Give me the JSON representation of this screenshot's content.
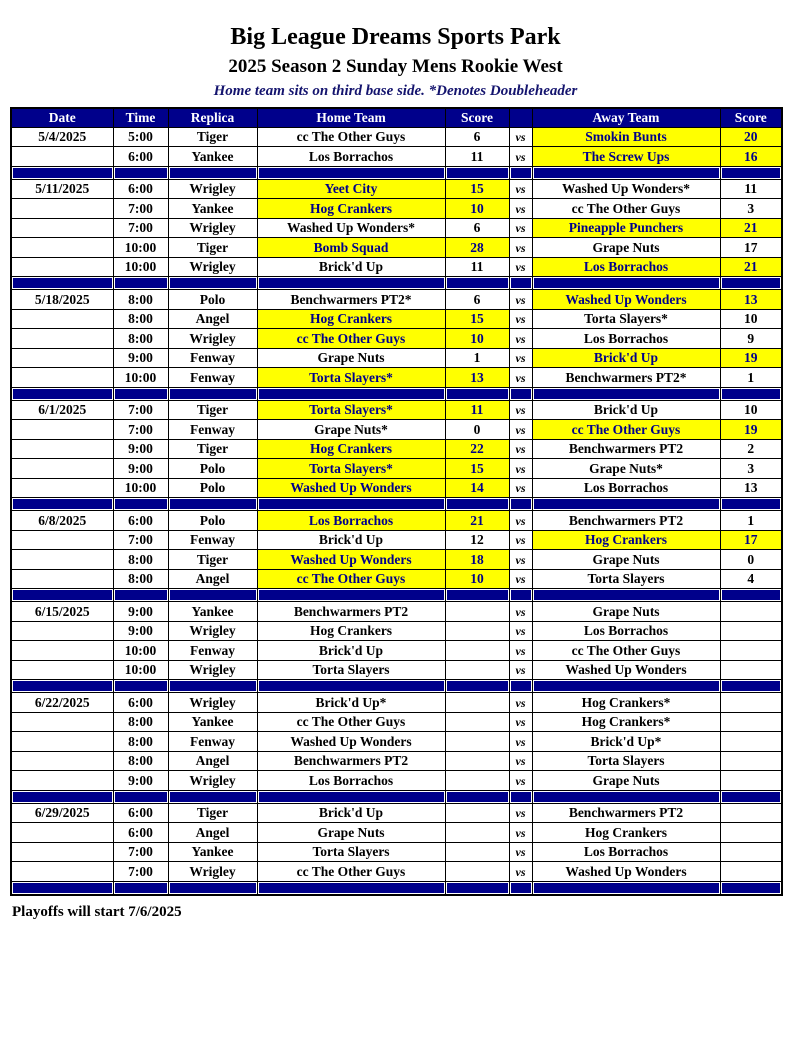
{
  "page": {
    "title": "Big League Dreams Sports Park",
    "subtitle": "2025 Season 2 Sunday Mens Rookie West",
    "note": "Home team sits on third base side.  *Denotes Doubleheader",
    "footer": "Playoffs will start 7/6/2025"
  },
  "colors": {
    "navy": "#00008b",
    "yellow": "#ffff00",
    "header_text": "#ffffff",
    "cell_text": "#000000",
    "winner_text": "#00008b"
  },
  "table": {
    "columns": [
      "Date",
      "Time",
      "Replica",
      "Home Team",
      "Score",
      "",
      "Away Team",
      "Score"
    ],
    "vs_label": "vs",
    "sections": [
      {
        "date": "5/4/2025",
        "games": [
          {
            "time": "5:00",
            "replica": "Tiger",
            "home": "cc The Other Guys",
            "home_score": "6",
            "away": "Smokin Bunts",
            "away_score": "20",
            "winner": "away"
          },
          {
            "time": "6:00",
            "replica": "Yankee",
            "home": "Los Borrachos",
            "home_score": "11",
            "away": "The Screw Ups",
            "away_score": "16",
            "winner": "away"
          }
        ]
      },
      {
        "date": "5/11/2025",
        "games": [
          {
            "time": "6:00",
            "replica": "Wrigley",
            "home": "Yeet City",
            "home_score": "15",
            "away": "Washed Up Wonders*",
            "away_score": "11",
            "winner": "home"
          },
          {
            "time": "7:00",
            "replica": "Yankee",
            "home": "Hog Crankers",
            "home_score": "10",
            "away": "cc The Other Guys",
            "away_score": "3",
            "winner": "home"
          },
          {
            "time": "7:00",
            "replica": "Wrigley",
            "home": "Washed Up Wonders*",
            "home_score": "6",
            "away": "Pineapple Punchers",
            "away_score": "21",
            "winner": "away"
          },
          {
            "time": "10:00",
            "replica": "Tiger",
            "home": "Bomb Squad",
            "home_score": "28",
            "away": "Grape Nuts",
            "away_score": "17",
            "winner": "home"
          },
          {
            "time": "10:00",
            "replica": "Wrigley",
            "home": "Brick'd Up",
            "home_score": "11",
            "away": "Los Borrachos",
            "away_score": "21",
            "winner": "away"
          }
        ]
      },
      {
        "date": "5/18/2025",
        "games": [
          {
            "time": "8:00",
            "replica": "Polo",
            "home": "Benchwarmers PT2*",
            "home_score": "6",
            "away": "Washed Up Wonders",
            "away_score": "13",
            "winner": "away"
          },
          {
            "time": "8:00",
            "replica": "Angel",
            "home": "Hog Crankers",
            "home_score": "15",
            "away": "Torta Slayers*",
            "away_score": "10",
            "winner": "home"
          },
          {
            "time": "8:00",
            "replica": "Wrigley",
            "home": "cc The Other Guys",
            "home_score": "10",
            "away": "Los Borrachos",
            "away_score": "9",
            "winner": "home"
          },
          {
            "time": "9:00",
            "replica": "Fenway",
            "home": "Grape Nuts",
            "home_score": "1",
            "away": "Brick'd Up",
            "away_score": "19",
            "winner": "away"
          },
          {
            "time": "10:00",
            "replica": "Fenway",
            "home": "Torta Slayers*",
            "home_score": "13",
            "away": "Benchwarmers PT2*",
            "away_score": "1",
            "winner": "home"
          }
        ]
      },
      {
        "date": "6/1/2025",
        "games": [
          {
            "time": "7:00",
            "replica": "Tiger",
            "home": "Torta Slayers*",
            "home_score": "11",
            "away": "Brick'd Up",
            "away_score": "10",
            "winner": "home"
          },
          {
            "time": "7:00",
            "replica": "Fenway",
            "home": "Grape Nuts*",
            "home_score": "0",
            "away": "cc The Other Guys",
            "away_score": "19",
            "winner": "away"
          },
          {
            "time": "9:00",
            "replica": "Tiger",
            "home": "Hog Crankers",
            "home_score": "22",
            "away": "Benchwarmers PT2",
            "away_score": "2",
            "winner": "home"
          },
          {
            "time": "9:00",
            "replica": "Polo",
            "home": "Torta Slayers*",
            "home_score": "15",
            "away": "Grape Nuts*",
            "away_score": "3",
            "winner": "home"
          },
          {
            "time": "10:00",
            "replica": "Polo",
            "home": "Washed Up Wonders",
            "home_score": "14",
            "away": "Los Borrachos",
            "away_score": "13",
            "winner": "home"
          }
        ]
      },
      {
        "date": "6/8/2025",
        "games": [
          {
            "time": "6:00",
            "replica": "Polo",
            "home": "Los Borrachos",
            "home_score": "21",
            "away": "Benchwarmers PT2",
            "away_score": "1",
            "winner": "home"
          },
          {
            "time": "7:00",
            "replica": "Fenway",
            "home": "Brick'd Up",
            "home_score": "12",
            "away": "Hog Crankers",
            "away_score": "17",
            "winner": "away"
          },
          {
            "time": "8:00",
            "replica": "Tiger",
            "home": "Washed Up Wonders",
            "home_score": "18",
            "away": "Grape Nuts",
            "away_score": "0",
            "winner": "home"
          },
          {
            "time": "8:00",
            "replica": "Angel",
            "home": "cc The Other Guys",
            "home_score": "10",
            "away": "Torta Slayers",
            "away_score": "4",
            "winner": "home"
          }
        ]
      },
      {
        "date": "6/15/2025",
        "games": [
          {
            "time": "9:00",
            "replica": "Yankee",
            "home": "Benchwarmers PT2",
            "home_score": "",
            "away": "Grape Nuts",
            "away_score": "",
            "winner": "none"
          },
          {
            "time": "9:00",
            "replica": "Wrigley",
            "home": "Hog Crankers",
            "home_score": "",
            "away": "Los Borrachos",
            "away_score": "",
            "winner": "none"
          },
          {
            "time": "10:00",
            "replica": "Fenway",
            "home": "Brick'd Up",
            "home_score": "",
            "away": "cc The Other Guys",
            "away_score": "",
            "winner": "none"
          },
          {
            "time": "10:00",
            "replica": "Wrigley",
            "home": "Torta Slayers",
            "home_score": "",
            "away": "Washed Up Wonders",
            "away_score": "",
            "winner": "none"
          }
        ]
      },
      {
        "date": "6/22/2025",
        "games": [
          {
            "time": "6:00",
            "replica": "Wrigley",
            "home": "Brick'd Up*",
            "home_score": "",
            "away": "Hog Crankers*",
            "away_score": "",
            "winner": "none"
          },
          {
            "time": "8:00",
            "replica": "Yankee",
            "home": "cc The Other Guys",
            "home_score": "",
            "away": "Hog Crankers*",
            "away_score": "",
            "winner": "none"
          },
          {
            "time": "8:00",
            "replica": "Fenway",
            "home": "Washed Up Wonders",
            "home_score": "",
            "away": "Brick'd Up*",
            "away_score": "",
            "winner": "none"
          },
          {
            "time": "8:00",
            "replica": "Angel",
            "home": "Benchwarmers PT2",
            "home_score": "",
            "away": "Torta Slayers",
            "away_score": "",
            "winner": "none"
          },
          {
            "time": "9:00",
            "replica": "Wrigley",
            "home": "Los Borrachos",
            "home_score": "",
            "away": "Grape Nuts",
            "away_score": "",
            "winner": "none"
          }
        ]
      },
      {
        "date": "6/29/2025",
        "games": [
          {
            "time": "6:00",
            "replica": "Tiger",
            "home": "Brick'd Up",
            "home_score": "",
            "away": "Benchwarmers PT2",
            "away_score": "",
            "winner": "none"
          },
          {
            "time": "6:00",
            "replica": "Angel",
            "home": "Grape Nuts",
            "home_score": "",
            "away": "Hog Crankers",
            "away_score": "",
            "winner": "none"
          },
          {
            "time": "7:00",
            "replica": "Yankee",
            "home": "Torta Slayers",
            "home_score": "",
            "away": "Los Borrachos",
            "away_score": "",
            "winner": "none"
          },
          {
            "time": "7:00",
            "replica": "Wrigley",
            "home": "cc The Other Guys",
            "home_score": "",
            "away": "Washed Up Wonders",
            "away_score": "",
            "winner": "none"
          }
        ]
      }
    ]
  }
}
